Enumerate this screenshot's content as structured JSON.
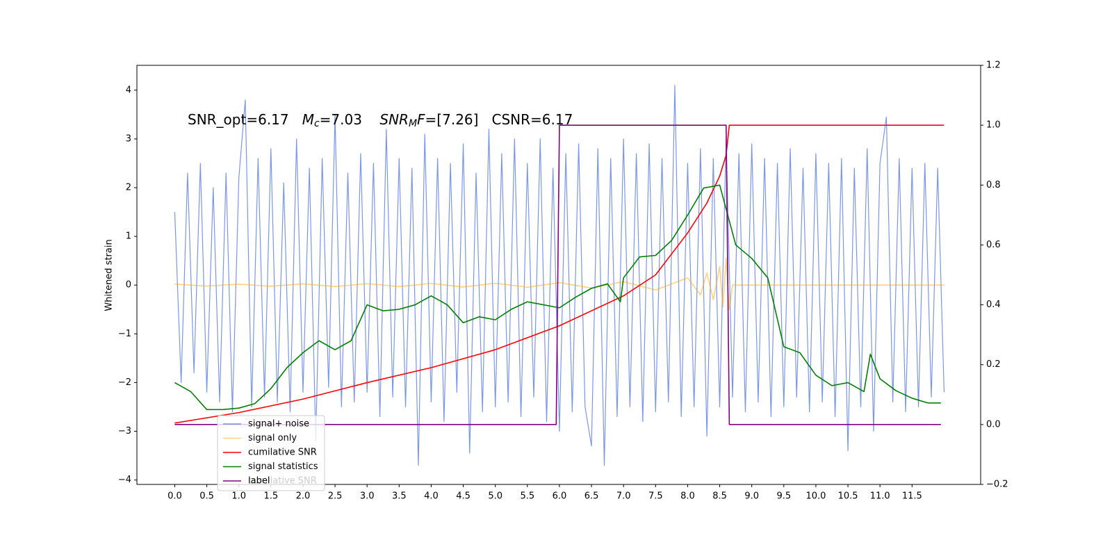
{
  "chart_data": {
    "type": "line",
    "ylabel": "Whitened strain",
    "annotation": [
      {
        "text": "SNR_opt=6.17   ",
        "style": "normal"
      },
      {
        "text": "M",
        "style": "italic"
      },
      {
        "text": "c",
        "style": "sub"
      },
      {
        "text": "=7.03    ",
        "style": "normal"
      },
      {
        "text": "SNR",
        "style": "italic"
      },
      {
        "text": "M",
        "style": "sub"
      },
      {
        "text": "F",
        "style": "italic"
      },
      {
        "text": "=[7.26]   CSNR=6.17",
        "style": "normal"
      }
    ],
    "xlim": [
      -0.59,
      12.57
    ],
    "ylim": [
      -4.09,
      4.51
    ],
    "y2lim": [
      -0.2,
      1.2
    ],
    "xticks": [
      {
        "value": 0,
        "label": "0.0"
      },
      {
        "value": 0.5,
        "label": "0.5"
      },
      {
        "value": 1,
        "label": "1.0"
      },
      {
        "value": 1.5,
        "label": "1.5"
      },
      {
        "value": 2,
        "label": "2.0"
      },
      {
        "value": 2.5,
        "label": "2.5"
      },
      {
        "value": 3,
        "label": "3.0"
      },
      {
        "value": 3.5,
        "label": "3.5"
      },
      {
        "value": 4,
        "label": "4.0"
      },
      {
        "value": 4.5,
        "label": "4.5"
      },
      {
        "value": 5,
        "label": "5.0"
      },
      {
        "value": 5.5,
        "label": "5.5"
      },
      {
        "value": 6,
        "label": "6.0"
      },
      {
        "value": 6.5,
        "label": "6.5"
      },
      {
        "value": 7,
        "label": "7.0"
      },
      {
        "value": 7.5,
        "label": "7.5"
      },
      {
        "value": 8,
        "label": "8.0"
      },
      {
        "value": 8.5,
        "label": "8.5"
      },
      {
        "value": 9,
        "label": "9.0"
      },
      {
        "value": 9.5,
        "label": "9.5"
      },
      {
        "value": 10,
        "label": "10.0"
      },
      {
        "value": 10.5,
        "label": "10.5"
      },
      {
        "value": 11,
        "label": "11.0"
      },
      {
        "value": 11.5,
        "label": "11.5"
      }
    ],
    "yticks": [
      {
        "value": -4,
        "label": "−4"
      },
      {
        "value": -3,
        "label": "−3"
      },
      {
        "value": -2,
        "label": "−2"
      },
      {
        "value": -1,
        "label": "−1"
      },
      0,
      1,
      2,
      3,
      4
    ],
    "y2ticks": [
      {
        "value": -0.2,
        "label": "−0.2"
      },
      {
        "value": 0,
        "label": "0.0"
      },
      {
        "value": 0.2,
        "label": "0.2"
      },
      {
        "value": 0.4,
        "label": "0.4"
      },
      {
        "value": 0.6,
        "label": "0.6"
      },
      {
        "value": 0.8,
        "label": "0.8"
      },
      {
        "value": 1,
        "label": "1.0"
      },
      {
        "value": 1.2,
        "label": "1.2"
      }
    ],
    "grid": false,
    "legend_position": "lower left",
    "hidden_legend_entry": "cumilative SNR",
    "series": [
      {
        "name": "signal+ noise",
        "color": "#4169e1",
        "alpha": 0.7,
        "x": [
          0,
          0.1,
          0.2,
          0.3,
          0.4,
          0.5,
          0.6,
          0.7,
          0.8,
          0.9,
          1,
          1.1,
          1.2,
          1.3,
          1.4,
          1.5,
          1.6,
          1.7,
          1.8,
          1.9,
          2,
          2.1,
          2.2,
          2.3,
          2.4,
          2.5,
          2.6,
          2.7,
          2.8,
          2.9,
          3,
          3.1,
          3.2,
          3.3,
          3.4,
          3.5,
          3.6,
          3.7,
          3.8,
          3.9,
          4,
          4.1,
          4.2,
          4.3,
          4.4,
          4.5,
          4.6,
          4.7,
          4.8,
          4.9,
          5,
          5.1,
          5.2,
          5.3,
          5.4,
          5.5,
          5.6,
          5.7,
          5.8,
          5.9,
          6,
          6.1,
          6.2,
          6.3,
          6.4,
          6.5,
          6.6,
          6.7,
          6.8,
          6.9,
          7,
          7.1,
          7.2,
          7.3,
          7.4,
          7.5,
          7.6,
          7.7,
          7.8,
          7.9,
          8,
          8.1,
          8.2,
          8.3,
          8.4,
          8.5,
          8.6,
          8.7,
          8.8,
          8.9,
          9,
          9.1,
          9.2,
          9.3,
          9.4,
          9.5,
          9.6,
          9.7,
          9.8,
          9.9,
          10,
          10.1,
          10.2,
          10.3,
          10.4,
          10.5,
          10.6,
          10.7,
          10.8,
          10.9,
          11,
          11.1,
          11.2,
          11.3,
          11.4,
          11.5,
          11.6,
          11.7,
          11.8,
          11.9,
          12
        ],
        "values": [
          1.5,
          -2.0,
          2.3,
          -1.8,
          2.5,
          -2.2,
          2.0,
          -2.4,
          2.3,
          -2.6,
          2.2,
          3.8,
          -2.5,
          2.6,
          -2.3,
          2.8,
          -2.4,
          2.1,
          -2.6,
          3.0,
          -2.2,
          2.4,
          -3.2,
          2.6,
          -2.1,
          3.5,
          -2.5,
          2.3,
          -2.4,
          2.7,
          -2.2,
          2.5,
          -2.7,
          3.2,
          -2.3,
          2.6,
          -2.5,
          2.4,
          -3.7,
          3.1,
          -2.4,
          2.6,
          -2.8,
          2.5,
          -2.2,
          2.9,
          -3.45,
          2.3,
          -2.6,
          3.2,
          -2.5,
          2.7,
          -2.4,
          3.0,
          -2.7,
          2.5,
          -2.3,
          3.0,
          -2.8,
          2.4,
          -3.0,
          2.7,
          -2.6,
          2.9,
          -2.5,
          -3.3,
          2.8,
          -3.7,
          2.6,
          -2.7,
          3.0,
          -2.5,
          2.7,
          -2.8,
          2.9,
          -2.6,
          2.6,
          -2.4,
          4.1,
          -2.7,
          2.5,
          -2.5,
          2.8,
          -3.1,
          2.6,
          -2.5,
          3.0,
          -2.3,
          2.7,
          -2.6,
          2.9,
          -2.4,
          2.6,
          -2.7,
          2.5,
          -2.5,
          2.8,
          -2.3,
          2.4,
          -2.6,
          2.7,
          -2.4,
          2.5,
          -2.7,
          2.6,
          -3.4,
          2.4,
          -2.5,
          2.8,
          -3.0,
          2.5,
          3.45,
          -2.4,
          2.6,
          -2.6,
          2.4,
          -2.5,
          2.5,
          -2.3,
          2.4,
          -2.2
        ]
      },
      {
        "name": "signal only",
        "color": "orange",
        "alpha": 0.5,
        "x": [
          0,
          0.5,
          1,
          1.5,
          2,
          2.5,
          3,
          3.5,
          4,
          4.5,
          5,
          5.5,
          6,
          6.5,
          7,
          7.5,
          8,
          8.2,
          8.3,
          8.4,
          8.5,
          8.55,
          8.6,
          8.65,
          8.7,
          12
        ],
        "values": [
          0.02,
          -0.02,
          0.02,
          -0.025,
          0.025,
          -0.03,
          0.03,
          -0.03,
          0.035,
          -0.04,
          0.04,
          -0.045,
          0.05,
          -0.06,
          0.07,
          -0.1,
          0.15,
          -0.2,
          0.25,
          -0.3,
          0.38,
          -0.45,
          0.55,
          -0.5,
          0,
          0
        ]
      },
      {
        "name": "cumilative SNR",
        "color": "red",
        "alpha": 1,
        "axis": "y2",
        "x": [
          0,
          1,
          2,
          3,
          4,
          5,
          6,
          7,
          7.5,
          8,
          8.3,
          8.5,
          8.6,
          8.65,
          12
        ],
        "values": [
          0.005,
          0.04,
          0.085,
          0.14,
          0.19,
          0.25,
          0.33,
          0.43,
          0.5,
          0.64,
          0.74,
          0.83,
          0.9,
          1.0,
          1.0
        ]
      },
      {
        "name": "signal statistics",
        "color": "green",
        "alpha": 1,
        "axis": "y2",
        "x": [
          0,
          0.25,
          0.5,
          0.75,
          1,
          1.25,
          1.5,
          1.75,
          2,
          2.25,
          2.5,
          2.75,
          3,
          3.25,
          3.5,
          3.75,
          4,
          4.25,
          4.5,
          4.75,
          5,
          5.25,
          5.5,
          5.75,
          6,
          6.25,
          6.5,
          6.75,
          6.95,
          7,
          7.25,
          7.5,
          7.75,
          8,
          8.25,
          8.5,
          8.75,
          9,
          9.25,
          9.5,
          9.75,
          10,
          10.25,
          10.5,
          10.75,
          10.85,
          11,
          11.25,
          11.5,
          11.75,
          11.95
        ],
        "values": [
          0.14,
          0.11,
          0.05,
          0.05,
          0.055,
          0.07,
          0.12,
          0.19,
          0.24,
          0.28,
          0.25,
          0.28,
          0.4,
          0.38,
          0.385,
          0.4,
          0.43,
          0.4,
          0.34,
          0.36,
          0.35,
          0.385,
          0.41,
          0.4,
          0.39,
          0.425,
          0.455,
          0.47,
          0.41,
          0.49,
          0.56,
          0.565,
          0.615,
          0.7,
          0.79,
          0.8,
          0.6,
          0.555,
          0.49,
          0.26,
          0.24,
          0.165,
          0.13,
          0.14,
          0.11,
          0.235,
          0.153,
          0.113,
          0.088,
          0.072,
          0.072
        ]
      },
      {
        "name": "label",
        "color": "purple",
        "alpha": 1,
        "axis": "y2",
        "x": [
          0,
          5.95,
          6.0,
          8.6,
          8.65,
          11.95
        ],
        "values": [
          0,
          0,
          1,
          1,
          0,
          0
        ]
      }
    ]
  }
}
